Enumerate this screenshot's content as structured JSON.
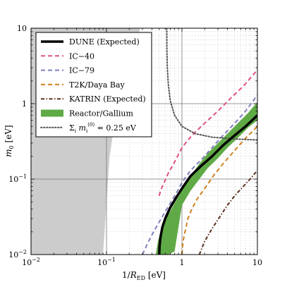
{
  "chart_data": {
    "type": "line",
    "title": "",
    "xlabel": "1/R_ED [eV]",
    "ylabel": "m_0 [eV]",
    "xlim": [
      0.01,
      10
    ],
    "ylim": [
      0.01,
      10
    ],
    "xscale": "log",
    "yscale": "log",
    "grid": true,
    "legend_position": "top-left",
    "x_ticks": [
      {
        "value": 0.01,
        "base": "10",
        "exp": "−2"
      },
      {
        "value": 0.1,
        "base": "10",
        "exp": "−1"
      },
      {
        "value": 1,
        "base": "1",
        "exp": ""
      },
      {
        "value": 10,
        "base": "10",
        "exp": ""
      }
    ],
    "y_ticks": [
      {
        "value": 0.01,
        "base": "10",
        "exp": "−2"
      },
      {
        "value": 0.1,
        "base": "10",
        "exp": "−1"
      },
      {
        "value": 1,
        "base": "1",
        "exp": ""
      },
      {
        "value": 10,
        "base": "10",
        "exp": ""
      }
    ],
    "series": [
      {
        "name": "DUNE (Expected)",
        "style": "solid",
        "color": "#000000",
        "width": 3.5,
        "x": [
          0.5,
          0.505,
          0.52,
          0.55,
          0.6,
          0.7,
          0.85,
          1.0,
          1.3,
          1.8,
          2.5,
          3.5,
          5.0,
          7.0,
          10.0
        ],
        "y": [
          0.01,
          0.013,
          0.017,
          0.023,
          0.03,
          0.042,
          0.058,
          0.075,
          0.11,
          0.15,
          0.2,
          0.28,
          0.38,
          0.5,
          0.7
        ]
      },
      {
        "name": "IC−40",
        "style": "dashed",
        "color": "#e05080",
        "width": 2,
        "x": [
          0.5,
          0.52,
          0.58,
          0.66,
          0.75,
          0.85,
          1.0,
          1.2,
          1.5,
          2.0,
          3.0,
          4.5,
          6.5,
          10.0
        ],
        "y": [
          0.06,
          0.07,
          0.09,
          0.12,
          0.15,
          0.19,
          0.26,
          0.33,
          0.42,
          0.55,
          0.8,
          1.2,
          1.7,
          2.8
        ]
      },
      {
        "name": "IC−79",
        "style": "dashed",
        "color": "#8080c0",
        "width": 2,
        "x": [
          0.3,
          0.35,
          0.42,
          0.5,
          0.6,
          0.72,
          0.85,
          1.0,
          1.3,
          1.8,
          2.5,
          3.5,
          5.0,
          7.0,
          10.0
        ],
        "y": [
          0.01,
          0.014,
          0.02,
          0.027,
          0.037,
          0.05,
          0.066,
          0.09,
          0.13,
          0.18,
          0.26,
          0.38,
          0.55,
          0.8,
          1.3
        ]
      },
      {
        "name": "T2K/Daya Bay",
        "style": "dashed",
        "color": "#d08020",
        "width": 2,
        "x": [
          1.0,
          1.02,
          1.06,
          1.12,
          1.2,
          1.35,
          1.6,
          2.0,
          2.6,
          3.5,
          5.0,
          7.0,
          10.0
        ],
        "y": [
          0.01,
          0.013,
          0.017,
          0.022,
          0.03,
          0.04,
          0.055,
          0.075,
          0.11,
          0.16,
          0.24,
          0.35,
          0.5
        ]
      },
      {
        "name": "KATRIN (Expected)",
        "style": "dashdot",
        "color": "#5a2f1e",
        "width": 2,
        "x": [
          1.7,
          2.0,
          2.5,
          3.2,
          4.0,
          5.0,
          6.5,
          8.0,
          10.0
        ],
        "y": [
          0.01,
          0.015,
          0.022,
          0.032,
          0.045,
          0.06,
          0.08,
          0.1,
          0.13
        ]
      },
      {
        "name": "Σ_i m_i^(0) = 0.25 eV",
        "style": "dotted",
        "color": "#555555",
        "width": 2,
        "x": [
          0.63,
          0.632,
          0.64,
          0.66,
          0.7,
          0.8,
          1.0,
          1.5,
          2.5,
          5.0,
          10.0
        ],
        "y": [
          10,
          5,
          3,
          1.8,
          1.1,
          0.7,
          0.5,
          0.4,
          0.36,
          0.34,
          0.33
        ]
      }
    ],
    "bands": [
      {
        "name": "Reactor/Gallium",
        "color": "#5faa46",
        "x": [
          0.45,
          0.48,
          0.55,
          0.65,
          0.8,
          1.0,
          1.3,
          1.7,
          2.2,
          3.0,
          4.0,
          5.5,
          7.5,
          10.0
        ],
        "y_low": [
          0.01,
          0.01,
          0.01,
          0.01,
          0.011,
          0.045,
          0.07,
          0.1,
          0.14,
          0.19,
          0.26,
          0.35,
          0.48,
          0.6
        ],
        "y_high": [
          0.01,
          0.015,
          0.024,
          0.033,
          0.048,
          0.07,
          0.11,
          0.16,
          0.22,
          0.3,
          0.4,
          0.55,
          0.75,
          1.05
        ]
      }
    ],
    "excluded_region": {
      "color": "#cccccc",
      "x": [
        0.01,
        0.01,
        0.28,
        0.25,
        0.2,
        0.16,
        0.13,
        0.11,
        0.09
      ],
      "y": [
        0.01,
        10,
        10,
        6,
        3,
        1.5,
        0.6,
        0.2,
        0.01
      ]
    },
    "legend": [
      {
        "label": "DUNE (Expected)",
        "style": "solid",
        "color": "#000000"
      },
      {
        "label": "IC−40",
        "style": "dashed",
        "color": "#e05080"
      },
      {
        "label": "IC−79",
        "style": "dashed",
        "color": "#8080c0"
      },
      {
        "label": "T2K/Daya Bay",
        "style": "dashed",
        "color": "#d08020"
      },
      {
        "label": "KATRIN (Expected)",
        "style": "dashdot",
        "color": "#5a2f1e"
      },
      {
        "label": "Reactor/Gallium",
        "style": "patch",
        "color": "#5faa46"
      },
      {
        "label": "Σ_i m_i^(0) = 0.25 eV",
        "style": "dotted",
        "color": "#555555"
      }
    ]
  }
}
